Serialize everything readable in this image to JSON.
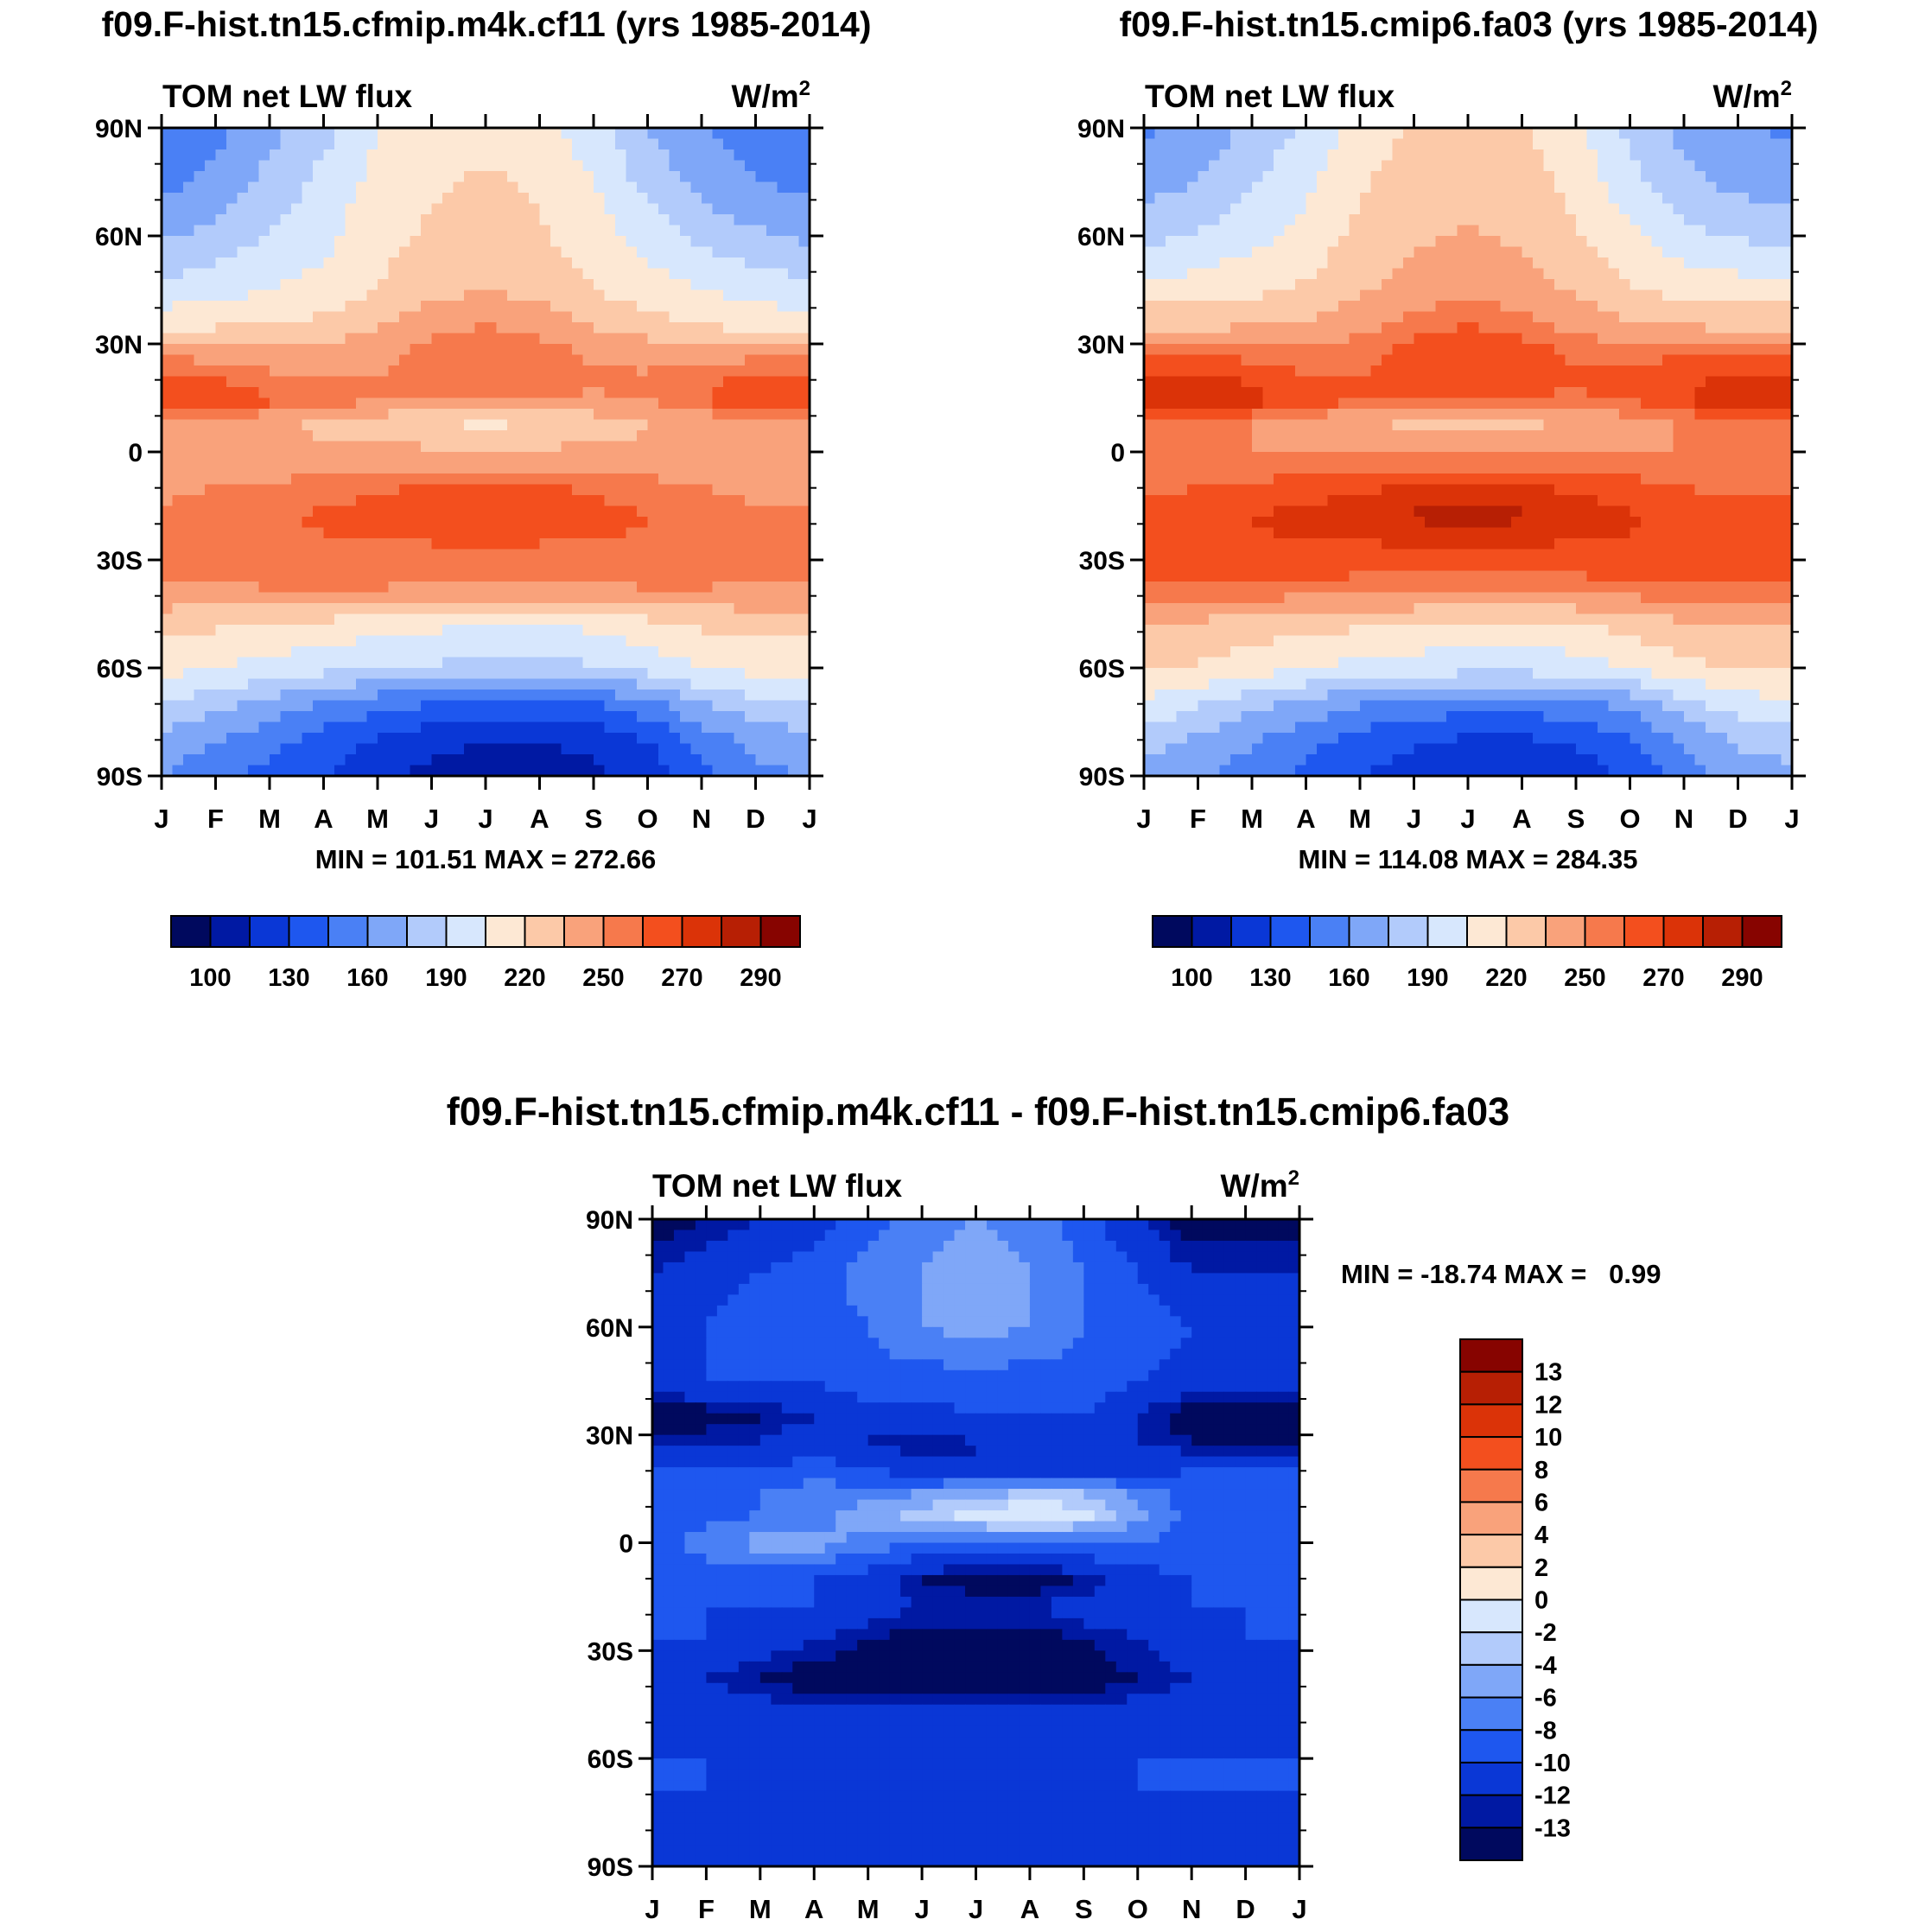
{
  "palette": {
    "abs": [
      "#00095e",
      "#0019a3",
      "#0a37d6",
      "#1e57ef",
      "#4a80f5",
      "#7fa7f8",
      "#b2cbfb",
      "#d7e7fd",
      "#fde8d4",
      "#fcc9a8",
      "#f9a27b",
      "#f6794c",
      "#f34f1e",
      "#db3308",
      "#b71f04",
      "#870400"
    ],
    "diff": [
      "#00095e",
      "#0019a3",
      "#0a37d6",
      "#1e57ef",
      "#4a80f5",
      "#7fa7f8",
      "#b2cbfb",
      "#d7e7fd",
      "#fde8d4",
      "#fcc9a8",
      "#f9a27b",
      "#f6794c",
      "#f34f1e",
      "#db3308",
      "#b71f04",
      "#870400"
    ]
  },
  "chart_data": [
    {
      "type": "heatmap",
      "id": "panel1",
      "title": "f09.F-hist.tn15.cfmip.m4k.cf11 (yrs 1985-2014)",
      "left_label": "TOM net LW flux",
      "units_base": "W/m",
      "units_sup": "2",
      "x_tick_labels": [
        "J",
        "F",
        "M",
        "A",
        "M",
        "J",
        "J",
        "A",
        "S",
        "O",
        "N",
        "D",
        "J"
      ],
      "y_tick_labels": [
        "90N",
        "60N",
        "30N",
        "0",
        "30S",
        "60S",
        "90S"
      ],
      "y_range": [
        -90,
        90
      ],
      "stats": "MIN = 101.51 MAX = 272.66",
      "colorbar": {
        "orientation": "horizontal",
        "labels": [
          "100",
          "130",
          "160",
          "190",
          "220",
          "250",
          "270",
          "290"
        ]
      },
      "months": [
        "J",
        "F",
        "M",
        "A",
        "M",
        "J",
        "J",
        "A",
        "S",
        "O",
        "N",
        "D"
      ],
      "latitudes": [
        90,
        75,
        60,
        45,
        35,
        28,
        20,
        14,
        8,
        0,
        -10,
        -18,
        -27,
        -38,
        -48,
        -60,
        -70,
        -80,
        -90
      ],
      "values": [
        [
          145,
          155,
          170,
          185,
          205,
          210,
          215,
          210,
          195,
          175,
          160,
          150
        ],
        [
          155,
          165,
          180,
          195,
          210,
          218,
          222,
          218,
          205,
          185,
          170,
          160
        ],
        [
          172,
          180,
          190,
          200,
          215,
          222,
          228,
          222,
          212,
          198,
          185,
          178
        ],
        [
          195,
          200,
          205,
          210,
          220,
          230,
          235,
          230,
          220,
          212,
          205,
          198
        ],
        [
          215,
          218,
          220,
          225,
          235,
          245,
          250,
          245,
          235,
          225,
          220,
          215
        ],
        [
          245,
          245,
          240,
          240,
          245,
          255,
          258,
          255,
          248,
          245,
          245,
          245
        ],
        [
          262,
          260,
          255,
          250,
          250,
          255,
          258,
          255,
          252,
          252,
          258,
          262
        ],
        [
          268,
          267,
          262,
          255,
          250,
          248,
          248,
          248,
          248,
          250,
          260,
          266
        ],
        [
          248,
          245,
          240,
          230,
          225,
          220,
          218,
          220,
          225,
          235,
          242,
          246
        ],
        [
          242,
          240,
          240,
          240,
          240,
          238,
          238,
          238,
          238,
          238,
          240,
          242
        ],
        [
          248,
          250,
          252,
          255,
          258,
          262,
          262,
          262,
          258,
          255,
          250,
          248
        ],
        [
          252,
          255,
          258,
          262,
          266,
          270,
          272,
          270,
          265,
          260,
          255,
          252
        ],
        [
          258,
          258,
          258,
          258,
          258,
          258,
          258,
          258,
          258,
          258,
          258,
          258
        ],
        [
          248,
          248,
          250,
          252,
          250,
          248,
          248,
          248,
          248,
          250,
          250,
          248
        ],
        [
          225,
          222,
          218,
          215,
          212,
          208,
          205,
          205,
          208,
          215,
          222,
          225
        ],
        [
          210,
          205,
          200,
          195,
          190,
          188,
          186,
          186,
          188,
          195,
          205,
          210
        ],
        [
          190,
          180,
          170,
          160,
          150,
          145,
          142,
          142,
          145,
          155,
          175,
          185
        ],
        [
          170,
          160,
          150,
          138,
          128,
          120,
          115,
          115,
          120,
          130,
          150,
          165
        ],
        [
          160,
          150,
          140,
          130,
          118,
          110,
          105,
          105,
          110,
          122,
          140,
          155
        ]
      ]
    },
    {
      "type": "heatmap",
      "id": "panel2",
      "title": "f09.F-hist.tn15.cmip6.fa03 (yrs 1985-2014)",
      "left_label": "TOM net LW flux",
      "units_base": "W/m",
      "units_sup": "2",
      "x_tick_labels": [
        "J",
        "F",
        "M",
        "A",
        "M",
        "J",
        "J",
        "A",
        "S",
        "O",
        "N",
        "D",
        "J"
      ],
      "y_tick_labels": [
        "90N",
        "60N",
        "30N",
        "0",
        "30S",
        "60S",
        "90S"
      ],
      "y_range": [
        -90,
        90
      ],
      "stats": "MIN = 114.08 MAX = 284.35",
      "colorbar": {
        "orientation": "horizontal",
        "labels": [
          "100",
          "130",
          "160",
          "190",
          "220",
          "250",
          "270",
          "290"
        ]
      },
      "months": [
        "J",
        "F",
        "M",
        "A",
        "M",
        "J",
        "J",
        "A",
        "S",
        "O",
        "N",
        "D"
      ],
      "latitudes": [
        90,
        75,
        60,
        45,
        35,
        28,
        20,
        14,
        8,
        0,
        -10,
        -18,
        -27,
        -38,
        -48,
        -60,
        -70,
        -80,
        -90
      ],
      "values": [
        [
          158,
          165,
          178,
          192,
          210,
          222,
          226,
          222,
          208,
          186,
          170,
          160
        ],
        [
          168,
          175,
          188,
          202,
          218,
          228,
          232,
          228,
          215,
          195,
          180,
          170
        ],
        [
          185,
          192,
          200,
          210,
          225,
          232,
          236,
          232,
          222,
          208,
          195,
          188
        ],
        [
          210,
          212,
          216,
          222,
          232,
          242,
          246,
          242,
          232,
          222,
          215,
          212
        ],
        [
          232,
          232,
          234,
          238,
          246,
          256,
          260,
          256,
          246,
          238,
          234,
          232
        ],
        [
          258,
          258,
          255,
          252,
          256,
          264,
          266,
          264,
          258,
          256,
          258,
          258
        ],
        [
          275,
          274,
          268,
          262,
          260,
          264,
          266,
          264,
          262,
          262,
          268,
          274
        ],
        [
          278,
          280,
          274,
          266,
          260,
          258,
          258,
          258,
          258,
          260,
          270,
          276
        ],
        [
          258,
          255,
          250,
          242,
          236,
          232,
          230,
          232,
          236,
          245,
          252,
          256
        ],
        [
          252,
          250,
          250,
          250,
          250,
          250,
          250,
          250,
          250,
          250,
          250,
          252
        ],
        [
          258,
          260,
          262,
          265,
          268,
          272,
          272,
          272,
          268,
          264,
          260,
          258
        ],
        [
          264,
          266,
          270,
          274,
          278,
          282,
          284,
          282,
          278,
          272,
          266,
          264
        ],
        [
          268,
          268,
          268,
          268,
          268,
          268,
          268,
          268,
          268,
          268,
          268,
          268
        ],
        [
          258,
          258,
          258,
          258,
          256,
          256,
          256,
          256,
          256,
          258,
          258,
          258
        ],
        [
          235,
          232,
          228,
          225,
          222,
          218,
          216,
          216,
          218,
          225,
          232,
          235
        ],
        [
          222,
          218,
          212,
          206,
          200,
          198,
          196,
          196,
          198,
          206,
          215,
          222
        ],
        [
          202,
          192,
          180,
          170,
          160,
          155,
          152,
          152,
          155,
          165,
          185,
          198
        ],
        [
          182,
          172,
          162,
          150,
          140,
          132,
          128,
          128,
          132,
          142,
          162,
          178
        ],
        [
          170,
          162,
          152,
          142,
          130,
          122,
          118,
          118,
          122,
          134,
          152,
          166
        ]
      ]
    },
    {
      "type": "heatmap",
      "id": "panel3",
      "title": "f09.F-hist.tn15.cfmip.m4k.cf11 - f09.F-hist.tn15.cmip6.fa03",
      "left_label": "TOM net LW flux",
      "units_base": "W/m",
      "units_sup": "2",
      "x_tick_labels": [
        "J",
        "F",
        "M",
        "A",
        "M",
        "J",
        "J",
        "A",
        "S",
        "O",
        "N",
        "D",
        "J"
      ],
      "y_tick_labels": [
        "90N",
        "60N",
        "30N",
        "0",
        "30S",
        "60S",
        "90S"
      ],
      "y_range": [
        -90,
        90
      ],
      "stats": "MIN = -18.74 MAX =   0.99",
      "colorbar": {
        "orientation": "vertical",
        "labels": [
          "13",
          "12",
          "10",
          "8",
          "6",
          "4",
          "2",
          "0",
          "-2",
          "-4",
          "-6",
          "-8",
          "-10",
          "-12",
          "-13"
        ]
      },
      "months": [
        "J",
        "F",
        "M",
        "A",
        "M",
        "J",
        "J",
        "A",
        "S",
        "O",
        "N",
        "D"
      ],
      "latitudes": [
        90,
        75,
        60,
        45,
        35,
        28,
        20,
        14,
        8,
        0,
        -10,
        -18,
        -27,
        -38,
        -48,
        -60,
        -70,
        -80,
        -90
      ],
      "values": [
        [
          -14,
          -13,
          -12,
          -11,
          -9,
          -7,
          -6,
          -7,
          -9,
          -12,
          -14,
          -14
        ],
        [
          -12,
          -11,
          -10,
          -9,
          -7,
          -6,
          -5,
          -6,
          -8,
          -10,
          -12,
          -12
        ],
        [
          -11,
          -10,
          -9,
          -9,
          -8,
          -6,
          -5,
          -6,
          -8,
          -9,
          -10,
          -11
        ],
        [
          -11,
          -10,
          -10,
          -10,
          -9,
          -9,
          -9,
          -9,
          -9,
          -10,
          -11,
          -11
        ],
        [
          -14,
          -14,
          -13,
          -12,
          -11,
          -11,
          -10,
          -10,
          -10,
          -12,
          -14,
          -14
        ],
        [
          -13,
          -12,
          -12,
          -11,
          -12,
          -13,
          -12,
          -12,
          -11,
          -12,
          -13,
          -13
        ],
        [
          -10,
          -10,
          -10,
          -9,
          -10,
          -11,
          -12,
          -11,
          -11,
          -11,
          -10,
          -10
        ],
        [
          -10,
          -9,
          -8,
          -7,
          -7,
          -6,
          -5,
          -4,
          -4,
          -7,
          -9,
          -10
        ],
        [
          -10,
          -9,
          -8,
          -7,
          -5,
          -3,
          -1,
          0,
          -1,
          -5,
          -9,
          -10
        ],
        [
          -9,
          -7,
          -5,
          -5,
          -7,
          -8,
          -8,
          -8,
          -8,
          -8,
          -9,
          -9
        ],
        [
          -10,
          -9,
          -9,
          -10,
          -11,
          -13,
          -14,
          -14,
          -13,
          -11,
          -10,
          -10
        ],
        [
          -10,
          -10,
          -10,
          -10,
          -11,
          -12,
          -12,
          -12,
          -11,
          -11,
          -10,
          -10
        ],
        [
          -10,
          -10,
          -11,
          -12,
          -13,
          -14,
          -14,
          -14,
          -13,
          -12,
          -11,
          -10
        ],
        [
          -12,
          -12,
          -13,
          -14,
          -14,
          -14,
          -14,
          -14,
          -14,
          -13,
          -12,
          -12
        ],
        [
          -11,
          -11,
          -11,
          -11,
          -11,
          -11,
          -11,
          -11,
          -11,
          -11,
          -11,
          -11
        ],
        [
          -10,
          -10,
          -11,
          -11,
          -11,
          -11,
          -11,
          -11,
          -11,
          -10,
          -10,
          -10
        ],
        [
          -10,
          -10,
          -10,
          -11,
          -11,
          -11,
          -11,
          -11,
          -11,
          -10,
          -10,
          -10
        ],
        [
          -11,
          -11,
          -11,
          -11,
          -11,
          -11,
          -11,
          -11,
          -11,
          -11,
          -11,
          -11
        ],
        [
          -11,
          -11,
          -11,
          -11,
          -11,
          -11,
          -11,
          -11,
          -11,
          -11,
          -11,
          -11
        ]
      ]
    }
  ]
}
